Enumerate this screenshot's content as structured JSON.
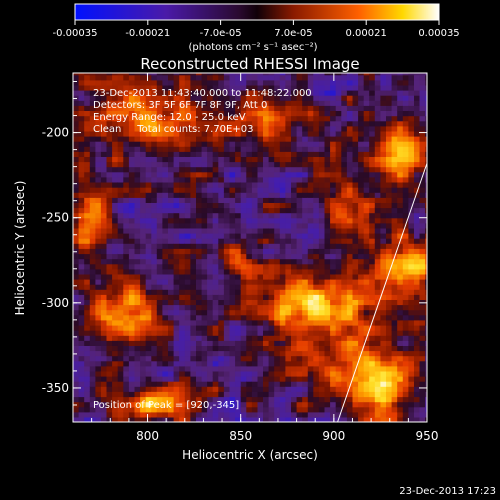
{
  "chart_data": {
    "type": "heatmap",
    "title": "Reconstructed RHESSI Image",
    "xlabel": "Heliocentric X (arcsec)",
    "ylabel": "Heliocentric Y (arcsec)",
    "xlim": [
      760,
      950
    ],
    "ylim": [
      -370,
      -165
    ],
    "x_ticks": [
      800,
      850,
      900,
      950
    ],
    "y_ticks": [
      -200,
      -250,
      -300,
      -350
    ],
    "colorbar": {
      "min": -0.00035,
      "max": 0.00035,
      "ticks": [
        "-0.00035",
        "-0.00021",
        "-7.0e-05",
        "7.0e-05",
        "0.00021",
        "0.00035"
      ],
      "unit_label": "(photons cm⁻² s⁻¹ asec⁻²)",
      "colors": [
        "#1010e0",
        "#5a1aa0",
        "#2a0a3a",
        "#8a1a00",
        "#e85000",
        "#ffd800",
        "#ffffff"
      ]
    },
    "annotations": {
      "time_range": "23-Dec-2013 11:43:40.000 to 11:48:22.000",
      "detectors": "Detectors: 3F 5F 6F 7F 8F 9F, Att 0",
      "energy": "Energy Range: 12.0 - 25.0 keV",
      "method": "Clean     Total counts: 7.70E+03",
      "peak": "Position of Peak = [920,-345]"
    },
    "peak": {
      "x": 920,
      "y": -345
    },
    "limb_line": [
      [
        902,
        -370
      ],
      [
        950,
        -218
      ]
    ],
    "sources": [
      {
        "x": 920,
        "y": -345,
        "sx": 14,
        "sy": 16,
        "amp": 1.0
      },
      {
        "x": 935,
        "y": -210,
        "sx": 10,
        "sy": 14,
        "amp": 0.85
      },
      {
        "x": 940,
        "y": -275,
        "sx": 12,
        "sy": 10,
        "amp": 0.75
      },
      {
        "x": 890,
        "y": -300,
        "sx": 22,
        "sy": 12,
        "amp": 0.8
      },
      {
        "x": 785,
        "y": -310,
        "sx": 14,
        "sy": 12,
        "amp": 0.85
      },
      {
        "x": 800,
        "y": -360,
        "sx": 14,
        "sy": 8,
        "amp": 0.7
      },
      {
        "x": 770,
        "y": -250,
        "sx": 8,
        "sy": 20,
        "amp": 0.6
      },
      {
        "x": 800,
        "y": -190,
        "sx": 25,
        "sy": 14,
        "amp": 0.6
      },
      {
        "x": 860,
        "y": -195,
        "sx": 14,
        "sy": 10,
        "amp": 0.45
      },
      {
        "x": 848,
        "y": -272,
        "sx": 7,
        "sy": 8,
        "amp": 0.5
      },
      {
        "x": 880,
        "y": -330,
        "sx": 8,
        "sy": 8,
        "amp": 0.4
      },
      {
        "x": 905,
        "y": -245,
        "sx": 8,
        "sy": 18,
        "amp": 0.45
      }
    ]
  },
  "footer_timestamp": "23-Dec-2013 17:23"
}
